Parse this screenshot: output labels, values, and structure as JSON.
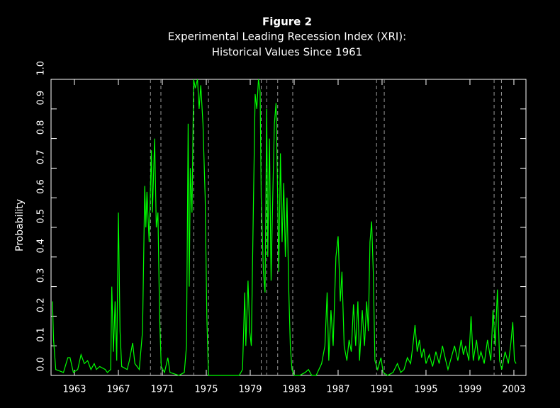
{
  "chart_data": {
    "type": "line",
    "title": "Figure 2",
    "subtitle": [
      "Experimental Leading Recession Index (XRI):",
      "Historical Values Since 1961"
    ],
    "y_label": "Probability",
    "color": "#00ff00",
    "recession_color": "#9a9a9a",
    "xlim": [
      1960.87,
      2004.1
    ],
    "xticks": [
      1963,
      1967,
      1971,
      1975,
      1979,
      1983,
      1987,
      1991,
      1995,
      1999,
      2003
    ],
    "ylim": [
      0,
      1
    ],
    "yticks": [
      {
        "value": 0,
        "label": "0.0"
      },
      0.1,
      0.2,
      0.3,
      0.4,
      0.5,
      0.6,
      0.7,
      0.8,
      0.9,
      {
        "value": 1,
        "label": "1.0"
      }
    ],
    "recessions": [
      [
        1969.92,
        1970.87
      ],
      [
        1973.87,
        1975.2
      ],
      [
        1980.0,
        1980.5
      ],
      [
        1981.5,
        1982.87
      ],
      [
        1990.5,
        1991.2
      ],
      [
        2001.2,
        2001.87
      ]
    ],
    "x": [
      1961.0,
      1961.1,
      1961.3,
      1962.0,
      1962.4,
      1962.6,
      1962.9,
      1963.3,
      1963.6,
      1963.9,
      1964.2,
      1964.5,
      1964.8,
      1965.0,
      1965.3,
      1965.8,
      1966.0,
      1966.3,
      1966.4,
      1966.55,
      1966.7,
      1966.85,
      1967.0,
      1967.15,
      1967.3,
      1967.8,
      1968.0,
      1968.3,
      1968.5,
      1968.9,
      1969.2,
      1969.4,
      1969.5,
      1969.6,
      1969.8,
      1970.0,
      1970.1,
      1970.3,
      1970.45,
      1970.6,
      1970.75,
      1970.9,
      1971.2,
      1971.5,
      1971.7,
      1972.5,
      1973.0,
      1973.2,
      1973.35,
      1973.45,
      1973.55,
      1973.7,
      1973.85,
      1974.0,
      1974.2,
      1974.35,
      1974.5,
      1974.7,
      1974.9,
      1975.05,
      1975.2,
      1976.5,
      1978.0,
      1978.3,
      1978.5,
      1978.6,
      1978.8,
      1978.95,
      1979.1,
      1979.3,
      1979.45,
      1979.6,
      1979.75,
      1979.9,
      1980.0,
      1980.2,
      1980.35,
      1980.5,
      1980.6,
      1980.75,
      1980.9,
      1981.05,
      1981.2,
      1981.35,
      1981.5,
      1981.6,
      1981.75,
      1981.9,
      1982.05,
      1982.2,
      1982.35,
      1982.5,
      1982.65,
      1982.8,
      1983.0,
      1983.5,
      1984.0,
      1984.3,
      1984.6,
      1985.0,
      1985.5,
      1985.8,
      1986.0,
      1986.15,
      1986.35,
      1986.55,
      1986.8,
      1987.0,
      1987.2,
      1987.35,
      1987.55,
      1987.8,
      1988.0,
      1988.2,
      1988.4,
      1988.6,
      1988.8,
      1988.95,
      1989.2,
      1989.4,
      1989.6,
      1989.75,
      1989.9,
      1990.05,
      1990.2,
      1990.35,
      1990.6,
      1990.9,
      1991.1,
      1991.5,
      1992.0,
      1992.4,
      1992.7,
      1993.0,
      1993.3,
      1993.6,
      1993.8,
      1994.0,
      1994.2,
      1994.4,
      1994.6,
      1994.8,
      1995.0,
      1995.3,
      1995.6,
      1995.9,
      1996.2,
      1996.5,
      1996.8,
      1997.0,
      1997.3,
      1997.6,
      1997.9,
      1998.2,
      1998.4,
      1998.6,
      1998.9,
      1999.1,
      1999.3,
      1999.6,
      1999.8,
      2000.0,
      2000.3,
      2000.6,
      2000.9,
      2001.1,
      2001.3,
      2001.5,
      2001.7,
      2001.9,
      2002.2,
      2002.5,
      2002.7,
      2002.9,
      2003.05,
      2003.2
    ],
    "values": [
      0.25,
      0.12,
      0.02,
      0.01,
      0.06,
      0.06,
      0.01,
      0.02,
      0.07,
      0.04,
      0.05,
      0.02,
      0.04,
      0.02,
      0.03,
      0.02,
      0.01,
      0.02,
      0.3,
      0.08,
      0.25,
      0.05,
      0.55,
      0.15,
      0.03,
      0.02,
      0.05,
      0.11,
      0.04,
      0.02,
      0.15,
      0.64,
      0.5,
      0.62,
      0.45,
      0.76,
      0.55,
      0.8,
      0.5,
      0.55,
      0.2,
      0.03,
      0.01,
      0.06,
      0.01,
      0.0,
      0.01,
      0.1,
      0.85,
      0.3,
      0.7,
      0.55,
      1.0,
      0.97,
      1.0,
      0.9,
      0.98,
      0.85,
      0.6,
      0.2,
      0.0,
      0.0,
      0.0,
      0.02,
      0.28,
      0.1,
      0.32,
      0.15,
      0.1,
      0.6,
      0.95,
      0.9,
      1.0,
      0.96,
      0.6,
      0.35,
      0.28,
      0.9,
      0.4,
      0.8,
      0.32,
      0.6,
      0.85,
      0.92,
      0.6,
      0.35,
      0.75,
      0.45,
      0.65,
      0.4,
      0.6,
      0.3,
      0.1,
      0.02,
      0.0,
      0.0,
      0.01,
      0.02,
      0.0,
      0.0,
      0.04,
      0.1,
      0.28,
      0.05,
      0.22,
      0.1,
      0.4,
      0.47,
      0.25,
      0.35,
      0.1,
      0.05,
      0.12,
      0.08,
      0.24,
      0.1,
      0.25,
      0.05,
      0.22,
      0.1,
      0.25,
      0.15,
      0.45,
      0.52,
      0.35,
      0.05,
      0.02,
      0.06,
      0.01,
      0.0,
      0.01,
      0.04,
      0.01,
      0.02,
      0.06,
      0.04,
      0.1,
      0.17,
      0.08,
      0.12,
      0.06,
      0.09,
      0.04,
      0.07,
      0.03,
      0.08,
      0.04,
      0.1,
      0.05,
      0.02,
      0.06,
      0.1,
      0.05,
      0.12,
      0.07,
      0.1,
      0.05,
      0.2,
      0.05,
      0.12,
      0.05,
      0.08,
      0.04,
      0.12,
      0.05,
      0.22,
      0.1,
      0.29,
      0.05,
      0.02,
      0.08,
      0.04,
      0.1,
      0.18,
      0.05,
      0.04
    ]
  }
}
